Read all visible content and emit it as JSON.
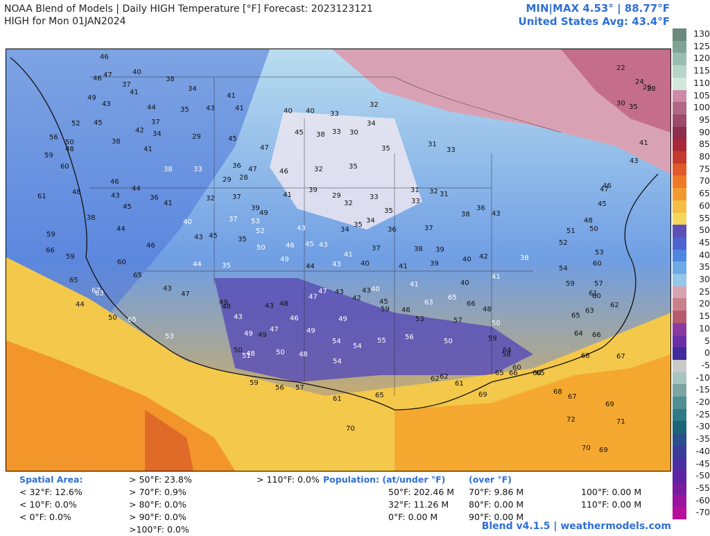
{
  "header": {
    "title": "NOAA Blend of Models | Daily HIGH Temperature [°F] Forecast: 2023123121",
    "subtitle": "HIGH for Mon 01JAN2024",
    "minmax": "MIN|MAX 4.53°  |  88.77°F",
    "us_avg": "United States Avg: 43.4°F"
  },
  "colors": {
    "cold_purple": "#5a4ab8",
    "blue": "#4b7ee0",
    "light_blue": "#a9d6ee",
    "pale": "#e8e4ee",
    "pink": "#d98aa3",
    "warm_yellow": "#f2c94c",
    "orange": "#f08a24",
    "accent_text": "#2f6fd6"
  },
  "scale": {
    "labels": [
      "130",
      "125",
      "120",
      "115",
      "110",
      "105",
      "100",
      "95",
      "90",
      "85",
      "80",
      "75",
      "70",
      "65",
      "60",
      "55",
      "50",
      "45",
      "40",
      "35",
      "30",
      "25",
      "20",
      "15",
      "10",
      "5",
      "0",
      "-5",
      "-10",
      "-15",
      "-20",
      "-25",
      "-30",
      "-35",
      "-40",
      "-45",
      "-50",
      "-55",
      "-60",
      "-70"
    ],
    "colors": [
      "#6b8a7e",
      "#7fa397",
      "#9bbdb1",
      "#b7d5c8",
      "#d3e8dc",
      "#cf8aa7",
      "#b06786",
      "#9e4a6b",
      "#8c2e4d",
      "#a8283a",
      "#c53a2e",
      "#e1592a",
      "#ee7a27",
      "#f29a32",
      "#f5bd45",
      "#f3d85c",
      "#5e4fb7",
      "#4c63d0",
      "#4f86df",
      "#6eaae6",
      "#94c7ea",
      "#d7a3b1",
      "#c9808d",
      "#b75c6e",
      "#8b3aa1",
      "#6a2fa7",
      "#412a9c",
      "#c9c9c9",
      "#a8c4c1",
      "#7ba4a2",
      "#4f8f94",
      "#2f7a86",
      "#1e6478",
      "#2b4f8a",
      "#3a3d97",
      "#4b2ea0",
      "#5e23a2",
      "#7a1aa1",
      "#9a14a0",
      "#b80f9c"
    ]
  },
  "footer": {
    "spatial_title": "Spatial Area:",
    "lt32": "< 32°F: 12.6%",
    "lt10": "< 10°F: 0.0%",
    "lt0": "< 0°F: 0.0%",
    "gt50": "> 50°F: 23.8%",
    "gt70": "> 70°F: 0.9%",
    "gt80": "> 80°F: 0.0%",
    "gt90": "> 90°F: 0.0%",
    "gt100": ">100°F: 0.0%",
    "gt110": "> 110°F: 0.0%",
    "pop_title": "Population: (at/under °F)",
    "pop_over": "(over °F)",
    "p50": "50°F: 202.46 M",
    "p32": "32°F: 11.26 M",
    "p0": "0°F: 0.00 M",
    "p70": "70°F: 9.86 M",
    "p80": "80°F: 0.00 M",
    "p90": "90°F: 0.00 M",
    "p100": "100°F: 0.00 M",
    "p110": "110°F: 0.00 M",
    "credit": "Blend v4.1.5 | weathermodels.com"
  },
  "station_labels": [
    {
      "t": "46"
    },
    {
      "t": "47"
    },
    {
      "t": "46"
    },
    {
      "t": "40"
    },
    {
      "t": "37"
    },
    {
      "t": "41"
    },
    {
      "t": "38"
    },
    {
      "t": "49"
    },
    {
      "t": "43"
    },
    {
      "t": "44"
    },
    {
      "t": "37"
    },
    {
      "t": "34"
    },
    {
      "t": "41"
    },
    {
      "t": "52"
    },
    {
      "t": "45"
    },
    {
      "t": "42"
    },
    {
      "t": "34"
    },
    {
      "t": "35"
    },
    {
      "t": "43"
    },
    {
      "t": "41"
    },
    {
      "t": "40"
    },
    {
      "t": "40"
    },
    {
      "t": "33"
    },
    {
      "t": "32"
    },
    {
      "t": "56"
    },
    {
      "t": "50"
    },
    {
      "t": "38"
    },
    {
      "t": "41"
    },
    {
      "t": "29"
    },
    {
      "t": "45"
    },
    {
      "t": "47"
    },
    {
      "t": "45"
    },
    {
      "t": "38"
    },
    {
      "t": "33"
    },
    {
      "t": "30"
    },
    {
      "t": "34"
    },
    {
      "t": "35"
    },
    {
      "t": "31"
    },
    {
      "t": "33"
    },
    {
      "t": "59"
    },
    {
      "t": "48"
    },
    {
      "t": "60"
    },
    {
      "t": "46"
    },
    {
      "t": "44"
    },
    {
      "t": "38"
    },
    {
      "t": "33"
    },
    {
      "t": "29"
    },
    {
      "t": "36"
    },
    {
      "t": "47"
    },
    {
      "t": "46"
    },
    {
      "t": "32"
    },
    {
      "t": "28"
    },
    {
      "t": "29"
    },
    {
      "t": "35"
    },
    {
      "t": "33"
    },
    {
      "t": "31"
    },
    {
      "t": "32"
    },
    {
      "t": "61"
    },
    {
      "t": "48"
    },
    {
      "t": "43"
    },
    {
      "t": "45"
    },
    {
      "t": "36"
    },
    {
      "t": "41"
    },
    {
      "t": "32"
    },
    {
      "t": "37"
    },
    {
      "t": "39"
    },
    {
      "t": "49"
    },
    {
      "t": "41"
    },
    {
      "t": "39"
    },
    {
      "t": "32"
    },
    {
      "t": "34"
    },
    {
      "t": "35"
    },
    {
      "t": "33"
    },
    {
      "t": "31"
    },
    {
      "t": "38"
    },
    {
      "t": "36"
    },
    {
      "t": "43"
    },
    {
      "t": "59"
    },
    {
      "t": "38"
    },
    {
      "t": "44"
    },
    {
      "t": "40"
    },
    {
      "t": "37"
    },
    {
      "t": "53"
    },
    {
      "t": "43"
    },
    {
      "t": "34"
    },
    {
      "t": "35"
    },
    {
      "t": "36"
    },
    {
      "t": "37"
    },
    {
      "t": "66"
    },
    {
      "t": "59"
    },
    {
      "t": "46"
    },
    {
      "t": "43"
    },
    {
      "t": "45"
    },
    {
      "t": "35"
    },
    {
      "t": "52"
    },
    {
      "t": "46"
    },
    {
      "t": "45"
    },
    {
      "t": "43"
    },
    {
      "t": "43"
    },
    {
      "t": "41"
    },
    {
      "t": "37"
    },
    {
      "t": "38"
    },
    {
      "t": "39"
    },
    {
      "t": "40"
    },
    {
      "t": "65"
    },
    {
      "t": "60"
    },
    {
      "t": "44"
    },
    {
      "t": "35"
    },
    {
      "t": "50"
    },
    {
      "t": "49"
    },
    {
      "t": "44"
    },
    {
      "t": "40"
    },
    {
      "t": "41"
    },
    {
      "t": "39"
    },
    {
      "t": "40"
    },
    {
      "t": "42"
    },
    {
      "t": "41"
    },
    {
      "t": "38"
    },
    {
      "t": "67"
    },
    {
      "t": "65"
    },
    {
      "t": "43"
    },
    {
      "t": "47"
    },
    {
      "t": "48"
    },
    {
      "t": "48"
    },
    {
      "t": "42"
    },
    {
      "t": "43"
    },
    {
      "t": "40"
    },
    {
      "t": "41"
    },
    {
      "t": "63"
    },
    {
      "t": "65"
    },
    {
      "t": "66"
    },
    {
      "t": "48"
    },
    {
      "t": "44"
    },
    {
      "t": "50"
    },
    {
      "t": "49"
    },
    {
      "t": "43"
    },
    {
      "t": "43"
    },
    {
      "t": "47"
    },
    {
      "t": "47"
    },
    {
      "t": "43"
    },
    {
      "t": "45"
    },
    {
      "t": "46"
    },
    {
      "t": "63"
    },
    {
      "t": "65"
    },
    {
      "t": "53"
    },
    {
      "t": "49"
    },
    {
      "t": "48"
    },
    {
      "t": "48"
    },
    {
      "t": "50"
    },
    {
      "t": "49"
    },
    {
      "t": "47"
    },
    {
      "t": "46"
    },
    {
      "t": "49"
    },
    {
      "t": "59"
    },
    {
      "t": "49"
    },
    {
      "t": "50"
    },
    {
      "t": "51"
    },
    {
      "t": "54"
    },
    {
      "t": "54"
    },
    {
      "t": "54"
    },
    {
      "t": "55"
    },
    {
      "t": "56"
    },
    {
      "t": "50"
    },
    {
      "t": "50"
    },
    {
      "t": "53"
    },
    {
      "t": "57"
    },
    {
      "t": "59"
    },
    {
      "t": "58"
    },
    {
      "t": "60"
    },
    {
      "t": "64"
    },
    {
      "t": "59"
    },
    {
      "t": "56"
    },
    {
      "t": "57"
    },
    {
      "t": "62"
    },
    {
      "t": "62"
    },
    {
      "t": "61"
    },
    {
      "t": "65"
    },
    {
      "t": "66"
    },
    {
      "t": "60"
    },
    {
      "t": "65"
    },
    {
      "t": "61"
    },
    {
      "t": "65"
    },
    {
      "t": "70"
    },
    {
      "t": "69"
    },
    {
      "t": "68"
    },
    {
      "t": "67"
    },
    {
      "t": "68"
    },
    {
      "t": "69"
    },
    {
      "t": "71"
    },
    {
      "t": "72"
    },
    {
      "t": "69"
    },
    {
      "t": "70"
    },
    {
      "t": "22"
    },
    {
      "t": "24"
    },
    {
      "t": "26"
    },
    {
      "t": "28"
    },
    {
      "t": "30"
    },
    {
      "t": "35"
    },
    {
      "t": "41"
    },
    {
      "t": "43"
    },
    {
      "t": "45"
    },
    {
      "t": "46"
    },
    {
      "t": "47"
    },
    {
      "t": "48"
    },
    {
      "t": "50"
    },
    {
      "t": "51"
    },
    {
      "t": "52"
    },
    {
      "t": "54"
    },
    {
      "t": "53"
    },
    {
      "t": "60"
    },
    {
      "t": "57"
    },
    {
      "t": "59"
    },
    {
      "t": "61"
    },
    {
      "t": "62"
    },
    {
      "t": "60"
    },
    {
      "t": "63"
    },
    {
      "t": "65"
    },
    {
      "t": "64"
    },
    {
      "t": "66"
    },
    {
      "t": "67"
    }
  ]
}
